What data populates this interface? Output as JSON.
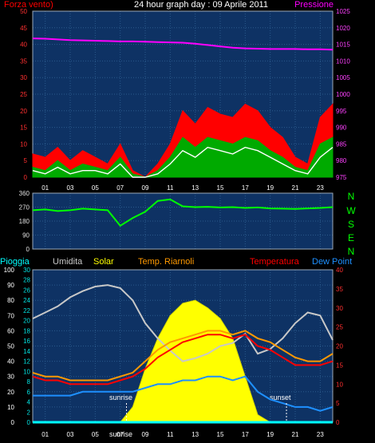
{
  "title": "24 hour graph day : 09 Aprile 2011",
  "colors": {
    "background": "#000000",
    "plot_bg": "#0e3264",
    "grid": "#2a5a8c",
    "wind": "#ff0000",
    "gust_fill": "#00aa00",
    "wind_line": "#ffffff",
    "pressure": "#ff00ff",
    "direction": "#00ff00",
    "humidity": "#c8c8c8",
    "solar": "#ffff00",
    "soil_temp": "#ff9900",
    "temperature": "#ff0000",
    "dewpoint": "#1e90ff",
    "rain": "#00ffff"
  },
  "x_ticks": [
    "01",
    "03",
    "05",
    "07",
    "09",
    "11",
    "13",
    "15",
    "17",
    "19",
    "21",
    "23"
  ],
  "chart_data": [
    {
      "type": "line",
      "panel": "wind-pressure",
      "left_label": "Forza vento)",
      "right_label": "Pressione",
      "yleft_ticks": [
        "50",
        "45",
        "40",
        "35",
        "30",
        "25",
        "20",
        "15",
        "10",
        "5",
        "0"
      ],
      "yright_ticks": [
        "1025",
        "1020",
        "1015",
        "1010",
        "1005",
        "1000",
        "995",
        "990",
        "985",
        "980",
        "975"
      ],
      "ylim_left": [
        0,
        50
      ],
      "ylim_right": [
        975,
        1025
      ],
      "x": [
        0,
        1,
        2,
        3,
        4,
        5,
        6,
        7,
        8,
        9,
        10,
        11,
        12,
        13,
        14,
        15,
        16,
        17,
        18,
        19,
        20,
        21,
        22,
        23,
        24
      ],
      "series": [
        {
          "key": "pressione",
          "axis": "right",
          "values": [
            1016.8,
            1016.7,
            1016.5,
            1016.3,
            1016.2,
            1016.1,
            1016.0,
            1015.9,
            1015.9,
            1015.8,
            1015.7,
            1015.6,
            1015.5,
            1015.2,
            1014.8,
            1014.4,
            1014.0,
            1013.8,
            1013.7,
            1013.6,
            1013.6,
            1013.6,
            1013.5,
            1013.5,
            1013.4
          ]
        },
        {
          "key": "raffica",
          "axis": "left",
          "values": [
            7,
            6,
            9,
            5,
            8,
            6,
            4,
            10,
            2,
            0,
            4,
            10,
            20,
            16,
            21,
            19,
            18,
            22,
            20,
            15,
            12,
            6,
            4,
            18,
            22
          ]
        },
        {
          "key": "vento",
          "axis": "left",
          "values": [
            3,
            2,
            5,
            2,
            4,
            3,
            2,
            6,
            1,
            0,
            2,
            6,
            12,
            9,
            12,
            11,
            10,
            12,
            11,
            8,
            6,
            3,
            2,
            10,
            12
          ]
        },
        {
          "key": "media",
          "axis": "left",
          "values": [
            2,
            1,
            3,
            1,
            2,
            2,
            1,
            4,
            0,
            0,
            1,
            4,
            8,
            6,
            9,
            8,
            7,
            9,
            8,
            6,
            4,
            2,
            1,
            6,
            9
          ]
        }
      ]
    },
    {
      "type": "line",
      "panel": "direction",
      "left_label": "",
      "yticks": [
        "360",
        "270",
        "180",
        "90",
        "0"
      ],
      "ylim": [
        0,
        360
      ],
      "compass": [
        "N",
        "W",
        "S",
        "E",
        "N"
      ],
      "x": [
        0,
        1,
        2,
        3,
        4,
        5,
        6,
        7,
        8,
        9,
        10,
        11,
        12,
        13,
        14,
        15,
        16,
        17,
        18,
        19,
        20,
        21,
        22,
        23,
        24
      ],
      "series": [
        {
          "key": "direzione",
          "values": [
            250,
            255,
            245,
            250,
            260,
            255,
            250,
            150,
            200,
            240,
            310,
            320,
            275,
            270,
            272,
            268,
            270,
            265,
            268,
            262,
            260,
            258,
            262,
            265,
            270
          ]
        }
      ]
    },
    {
      "type": "line",
      "panel": "climate",
      "legend": [
        "Pioggia",
        "Umidita",
        "Solar",
        "Temp. Riarnoli",
        "Temperatura",
        "Dew Point"
      ],
      "yleft_outer_ticks": [
        "100",
        "90",
        "80",
        "70",
        "60",
        "50",
        "40",
        "30",
        "20",
        "10",
        "0"
      ],
      "yleft_inner_ticks": [
        "30",
        "28",
        "26",
        "24",
        "22",
        "20",
        "18",
        "16",
        "14",
        "12",
        "10",
        "8",
        "6",
        "4",
        "2",
        "0"
      ],
      "yright_ticks": [
        "40",
        "35",
        "30",
        "25",
        "20",
        "15",
        "10",
        "5",
        "0"
      ],
      "ylim_right": [
        0,
        40
      ],
      "ylim_outer": [
        0,
        100
      ],
      "annotations": {
        "sunrise": "sunrise",
        "sunset": "sunset",
        "sunrise_axis": "sunrise"
      },
      "x": [
        0,
        1,
        2,
        3,
        4,
        5,
        6,
        7,
        8,
        9,
        10,
        11,
        12,
        13,
        14,
        15,
        16,
        17,
        18,
        19,
        20,
        21,
        22,
        23,
        24
      ],
      "series": [
        {
          "key": "umidita",
          "axis": "outer",
          "values": [
            68,
            72,
            76,
            82,
            86,
            89,
            90,
            88,
            80,
            65,
            55,
            47,
            40,
            42,
            45,
            50,
            52,
            58,
            45,
            48,
            55,
            65,
            72,
            70,
            54
          ]
        },
        {
          "key": "solar",
          "axis": "outer",
          "values": [
            0,
            0,
            0,
            0,
            0,
            0,
            0,
            0,
            10,
            35,
            55,
            70,
            78,
            80,
            75,
            68,
            55,
            30,
            5,
            0,
            0,
            0,
            0,
            0,
            0
          ]
        },
        {
          "key": "temp_riarnoli",
          "axis": "right",
          "values": [
            13,
            12,
            12,
            11,
            11,
            11,
            11,
            12,
            13,
            16,
            19,
            21,
            22,
            23,
            24,
            24,
            23,
            24,
            22,
            21,
            19,
            17,
            16,
            16,
            18
          ]
        },
        {
          "key": "temperatura",
          "axis": "right",
          "values": [
            12,
            11,
            11,
            10,
            10,
            10,
            10,
            11,
            12,
            14,
            17,
            19,
            21,
            22,
            23,
            23,
            22,
            23,
            20,
            19,
            17,
            15,
            15,
            15,
            16
          ]
        },
        {
          "key": "dew_point",
          "axis": "right",
          "values": [
            7,
            7,
            7,
            7,
            8,
            8,
            8,
            8,
            8,
            9,
            10,
            10,
            11,
            11,
            12,
            12,
            11,
            12,
            8,
            6,
            5,
            4,
            4,
            3,
            4
          ]
        },
        {
          "key": "pioggia",
          "axis": "outer",
          "values": [
            0,
            0,
            0,
            0,
            0,
            0,
            0,
            0,
            0,
            0,
            0,
            0,
            0,
            0,
            0,
            0,
            0,
            0,
            0,
            0,
            0,
            0,
            0,
            0,
            0
          ]
        }
      ]
    }
  ]
}
